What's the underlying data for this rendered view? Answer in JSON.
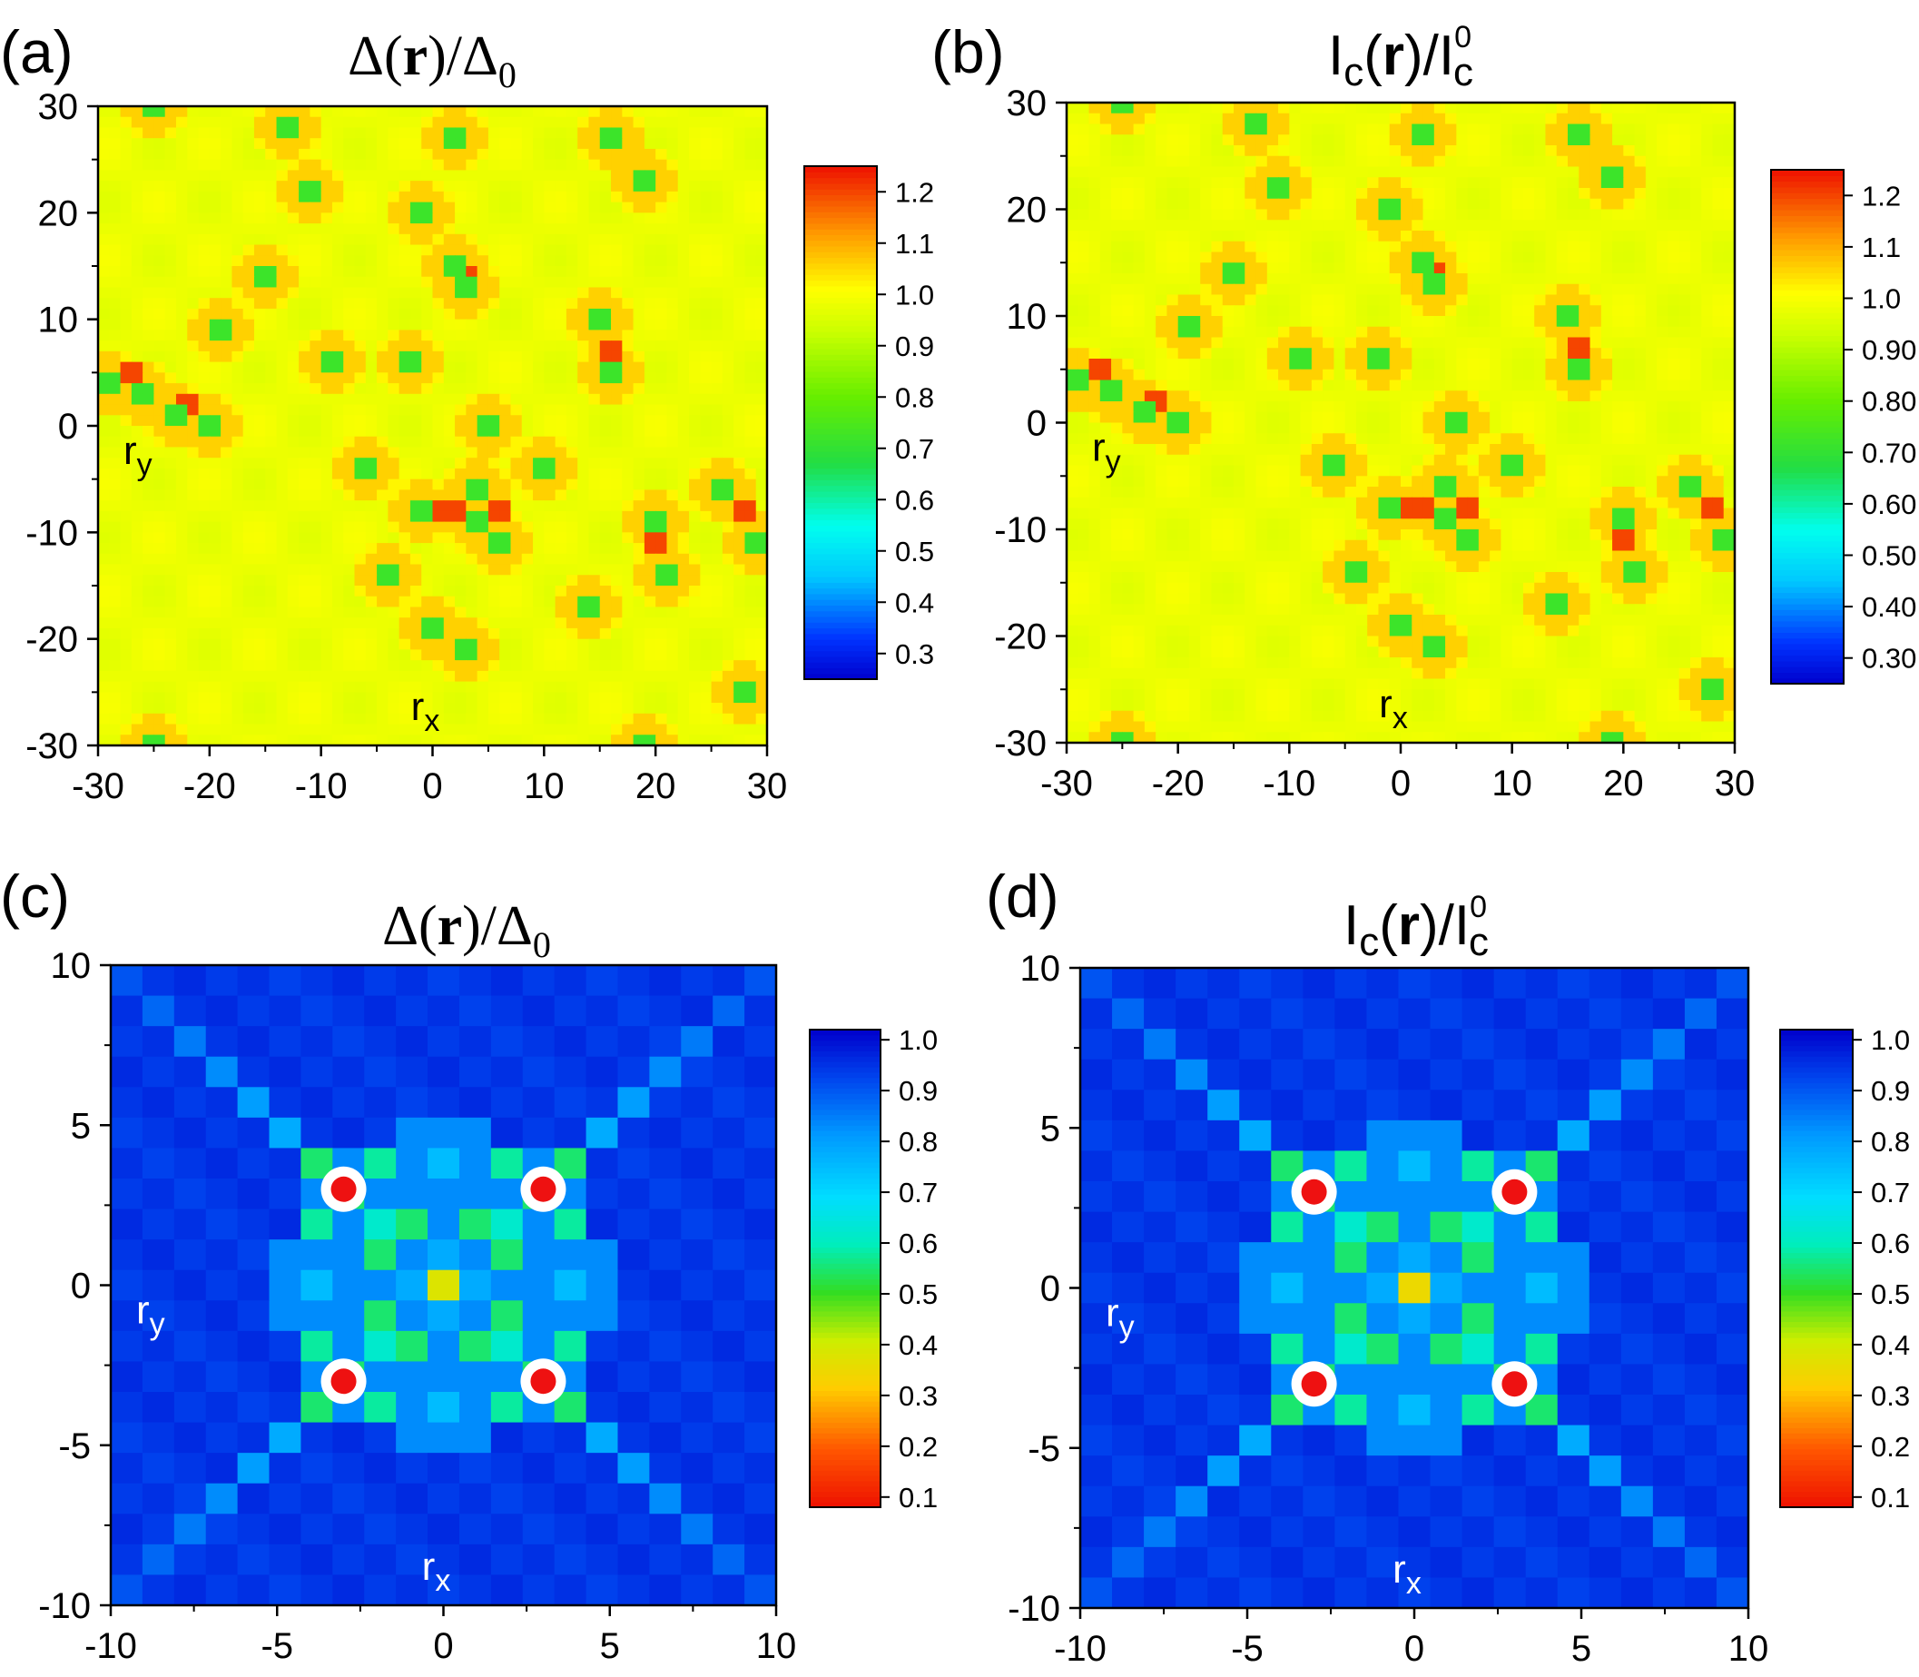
{
  "figure": {
    "description_free": true
  },
  "chart_data": [
    {
      "id": "a",
      "panel_label": "(a)",
      "type": "heatmap",
      "title": {
        "pre": "Δ(",
        "bold": "r",
        "post": ")/Δ",
        "sub": "0"
      },
      "title_style": "serif",
      "xlim": [
        -30,
        30
      ],
      "ylim": [
        -30,
        30
      ],
      "xticks": [
        -30,
        -20,
        -10,
        0,
        10,
        20,
        30
      ],
      "yticks": [
        -30,
        -20,
        -10,
        0,
        10,
        20,
        30
      ],
      "xlabel": "r",
      "xlabel_sub": "x",
      "ylabel": "r",
      "ylabel_sub": "y",
      "axis_label_color": "#000000",
      "background_value": 0.98,
      "colorbar": {
        "min": 0.25,
        "max": 1.25,
        "ticks": [
          0.3,
          0.4,
          0.5,
          0.6,
          0.7,
          0.8,
          0.9,
          1.0,
          1.1,
          1.2
        ],
        "tick_labels": [
          "0.3",
          "0.4",
          "0.5",
          "0.6",
          "0.7",
          "0.8",
          "0.9",
          "1.0",
          "1.1",
          "1.2"
        ],
        "scheme": "rainbow"
      },
      "vortex_centers": [
        [
          -25,
          30
        ],
        [
          -13,
          28
        ],
        [
          -11,
          22
        ],
        [
          2,
          27
        ],
        [
          16,
          27
        ],
        [
          19,
          23
        ],
        [
          -1,
          20
        ],
        [
          2,
          15
        ],
        [
          3,
          13
        ],
        [
          -15,
          14
        ],
        [
          -19,
          9
        ],
        [
          -9,
          6
        ],
        [
          -2,
          6
        ],
        [
          15,
          10
        ],
        [
          16,
          5
        ],
        [
          -29,
          4
        ],
        [
          -26,
          3
        ],
        [
          -23,
          1
        ],
        [
          -20,
          0
        ],
        [
          5,
          0
        ],
        [
          -6,
          -4
        ],
        [
          10,
          -4
        ],
        [
          -1,
          -8
        ],
        [
          4,
          -6
        ],
        [
          4,
          -9
        ],
        [
          6,
          -11
        ],
        [
          -4,
          -14
        ],
        [
          0,
          -19
        ],
        [
          3,
          -21
        ],
        [
          14,
          -17
        ],
        [
          20,
          -9
        ],
        [
          21,
          -14
        ],
        [
          26,
          -6
        ],
        [
          29,
          -11
        ],
        [
          28,
          -25
        ],
        [
          -25,
          -30
        ],
        [
          19,
          -30
        ]
      ],
      "enhanced_spots": [
        [
          -27,
          5
        ],
        [
          -22,
          2
        ],
        [
          1.5,
          -8
        ],
        [
          6,
          -8
        ],
        [
          20,
          -11
        ],
        [
          28,
          -8
        ],
        [
          16,
          7
        ],
        [
          3,
          14
        ]
      ]
    },
    {
      "id": "b",
      "panel_label": "(b)",
      "type": "heatmap",
      "title": {
        "pre": "I",
        "sub1": "c",
        "mid": "(",
        "bold": "r",
        "post": ")/I",
        "sup": "0",
        "sub": "c"
      },
      "title_style": "sans",
      "xlim": [
        -30,
        30
      ],
      "ylim": [
        -30,
        30
      ],
      "xticks": [
        -30,
        -20,
        -10,
        0,
        10,
        20,
        30
      ],
      "yticks": [
        -30,
        -20,
        -10,
        0,
        10,
        20,
        30
      ],
      "xlabel": "r",
      "xlabel_sub": "x",
      "ylabel": "r",
      "ylabel_sub": "y",
      "axis_label_color": "#000000",
      "background_value": 0.98,
      "colorbar": {
        "min": 0.25,
        "max": 1.25,
        "ticks": [
          0.3,
          0.4,
          0.5,
          0.6,
          0.7,
          0.8,
          0.9,
          1.0,
          1.1,
          1.2
        ],
        "tick_labels": [
          "0.30",
          "0.40",
          "0.50",
          "0.60",
          "0.70",
          "0.80",
          "0.90",
          "1.0",
          "1.1",
          "1.2"
        ],
        "scheme": "rainbow"
      },
      "vortex_centers": [
        [
          -25,
          30
        ],
        [
          -13,
          28
        ],
        [
          -11,
          22
        ],
        [
          2,
          27
        ],
        [
          16,
          27
        ],
        [
          19,
          23
        ],
        [
          -1,
          20
        ],
        [
          2,
          15
        ],
        [
          3,
          13
        ],
        [
          -15,
          14
        ],
        [
          -19,
          9
        ],
        [
          -9,
          6
        ],
        [
          -2,
          6
        ],
        [
          15,
          10
        ],
        [
          16,
          5
        ],
        [
          -29,
          4
        ],
        [
          -26,
          3
        ],
        [
          -23,
          1
        ],
        [
          -20,
          0
        ],
        [
          5,
          0
        ],
        [
          -6,
          -4
        ],
        [
          10,
          -4
        ],
        [
          -1,
          -8
        ],
        [
          4,
          -6
        ],
        [
          4,
          -9
        ],
        [
          6,
          -11
        ],
        [
          -4,
          -14
        ],
        [
          0,
          -19
        ],
        [
          3,
          -21
        ],
        [
          14,
          -17
        ],
        [
          20,
          -9
        ],
        [
          21,
          -14
        ],
        [
          26,
          -6
        ],
        [
          29,
          -11
        ],
        [
          28,
          -25
        ],
        [
          -25,
          -30
        ],
        [
          19,
          -30
        ]
      ],
      "enhanced_spots": [
        [
          -27,
          5
        ],
        [
          -22,
          2
        ],
        [
          1.5,
          -8
        ],
        [
          6,
          -8
        ],
        [
          20,
          -11
        ],
        [
          28,
          -8
        ],
        [
          16,
          7
        ],
        [
          3,
          14
        ]
      ]
    },
    {
      "id": "c",
      "panel_label": "(c)",
      "type": "heatmap",
      "title": {
        "pre": "Δ(",
        "bold": "r",
        "post": ")/Δ",
        "sub": "0"
      },
      "title_style": "serif",
      "xlim": [
        -10,
        10
      ],
      "ylim": [
        -10,
        10
      ],
      "xticks": [
        -10,
        -5,
        0,
        5,
        10
      ],
      "yticks": [
        -10,
        -5,
        0,
        5,
        10
      ],
      "xlabel": "r",
      "xlabel_sub": "x",
      "ylabel": "r",
      "ylabel_sub": "y",
      "axis_label_color": "#ffffff",
      "grid_n": 21,
      "colorbar": {
        "min": 0.08,
        "max": 1.02,
        "ticks": [
          0.1,
          0.2,
          0.3,
          0.4,
          0.5,
          0.6,
          0.7,
          0.8,
          0.9,
          1.0
        ],
        "tick_labels": [
          "0.1",
          "0.2",
          "0.3",
          "0.4",
          "0.5",
          "0.6",
          "0.7",
          "0.8",
          "0.9",
          "1.0"
        ],
        "scheme": "rainbow_reversed"
      },
      "center_value": 0.38,
      "impurities": [
        [
          -3,
          3
        ],
        [
          3,
          3
        ],
        [
          -3,
          -3
        ],
        [
          3,
          -3
        ]
      ]
    },
    {
      "id": "d",
      "panel_label": "(d)",
      "type": "heatmap",
      "title": {
        "pre": "I",
        "sub1": "c",
        "mid": "(",
        "bold": "r",
        "post": ")/I",
        "sup": "0",
        "sub": "c"
      },
      "title_style": "sans",
      "xlim": [
        -10,
        10
      ],
      "ylim": [
        -10,
        10
      ],
      "xticks": [
        -10,
        -5,
        0,
        5,
        10
      ],
      "yticks": [
        -10,
        -5,
        0,
        5,
        10
      ],
      "xlabel": "r",
      "xlabel_sub": "x",
      "ylabel": "r",
      "ylabel_sub": "y",
      "axis_label_color": "#ffffff",
      "grid_n": 21,
      "colorbar": {
        "min": 0.08,
        "max": 1.02,
        "ticks": [
          0.1,
          0.2,
          0.3,
          0.4,
          0.5,
          0.6,
          0.7,
          0.8,
          0.9,
          1.0
        ],
        "tick_labels": [
          "0.1",
          "0.2",
          "0.3",
          "0.4",
          "0.5",
          "0.6",
          "0.7",
          "0.8",
          "0.9",
          "1.0"
        ],
        "scheme": "rainbow_reversed"
      },
      "center_value": 0.35,
      "impurities": [
        [
          -3,
          3
        ],
        [
          3,
          3
        ],
        [
          -3,
          -3
        ],
        [
          3,
          -3
        ]
      ]
    }
  ],
  "colors": {
    "impurity_fill": "#ee1111",
    "impurity_ring": "#ffffff",
    "axis": "#000000"
  }
}
